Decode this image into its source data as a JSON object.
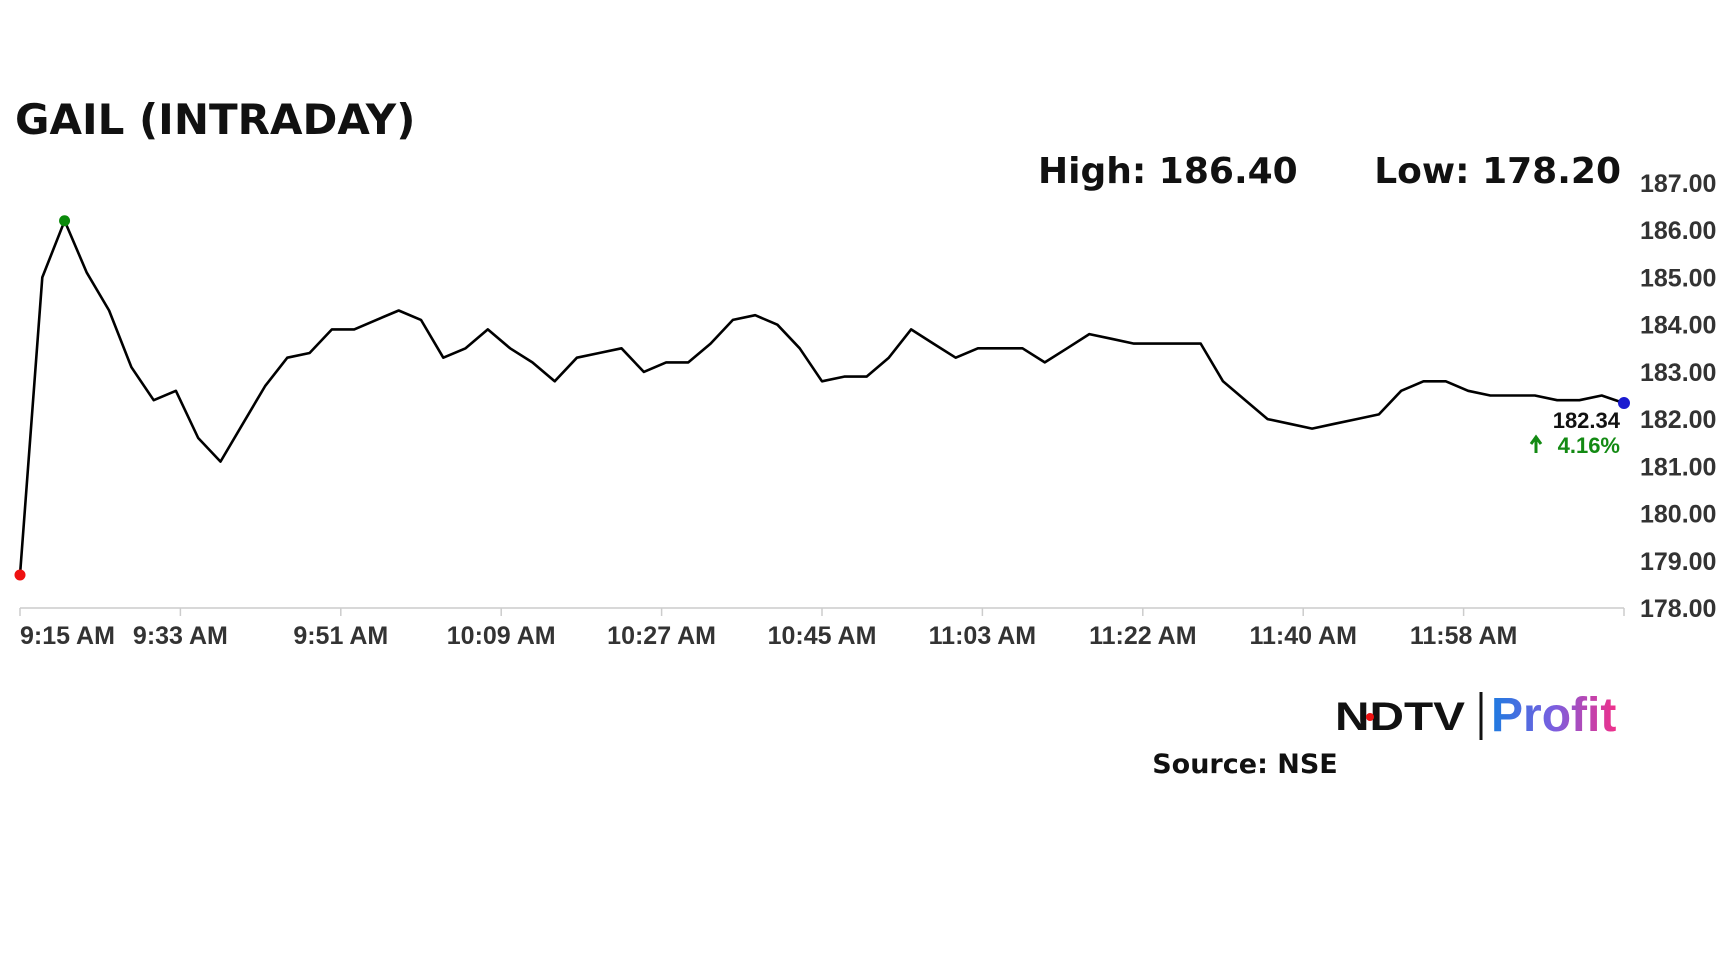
{
  "chart_data": {
    "type": "line",
    "title": "GAIL (INTRADAY)",
    "high_text": "High: 186.40",
    "low_text": "Low: 178.20",
    "source": "Source: NSE",
    "logo": {
      "left": "NDTV",
      "right": "Profit"
    },
    "change": "4.16%",
    "change_color": "#138a13",
    "color": "#000000",
    "high_marker_color": "#0a8a0a",
    "low_marker_color": "#ee1111",
    "last_marker_color": "#1a1ad0",
    "x_labels": [
      "9:15 AM",
      "9:33 AM",
      "9:51 AM",
      "10:09 AM",
      "10:27 AM",
      "10:45 AM",
      "11:03 AM",
      "11:22 AM",
      "11:40 AM",
      "11:58 AM",
      null
    ],
    "values": [
      178.7,
      185.0,
      186.2,
      185.1,
      184.3,
      183.1,
      182.4,
      182.6,
      181.6,
      181.1,
      181.9,
      182.7,
      183.3,
      183.4,
      183.9,
      183.9,
      184.1,
      184.3,
      184.1,
      183.3,
      183.5,
      183.9,
      183.5,
      183.2,
      182.8,
      183.3,
      183.4,
      183.5,
      183.0,
      183.2,
      183.2,
      183.6,
      184.1,
      184.2,
      184.0,
      183.5,
      182.8,
      182.9,
      182.9,
      183.3,
      183.9,
      183.6,
      183.3,
      183.5,
      183.5,
      183.5,
      183.2,
      183.5,
      183.8,
      183.7,
      183.6,
      183.6,
      183.6,
      183.6,
      182.8,
      182.4,
      182.0,
      181.9,
      181.8,
      181.9,
      182.0,
      182.1,
      182.6,
      182.8,
      182.8,
      182.6,
      182.5,
      182.5,
      182.5,
      182.4,
      182.4,
      182.5,
      182.34
    ],
    "value_labels": [
      null,
      null,
      null,
      null,
      null,
      null,
      null,
      null,
      null,
      null,
      null,
      null,
      null,
      null,
      null,
      null,
      null,
      null,
      null,
      null,
      null,
      null,
      null,
      null,
      null,
      null,
      null,
      null,
      null,
      null,
      null,
      null,
      null,
      null,
      null,
      null,
      null,
      null,
      null,
      null,
      null,
      null,
      null,
      null,
      null,
      null,
      null,
      null,
      null,
      null,
      null,
      null,
      null,
      null,
      null,
      null,
      null,
      null,
      null,
      null,
      null,
      null,
      null,
      null,
      null,
      null,
      null,
      null,
      null,
      null,
      null,
      null,
      "182.34"
    ],
    "ylim": [
      178,
      187
    ],
    "yticks": [
      {
        "value": 178,
        "label": "178.00"
      },
      {
        "value": 179,
        "label": "179.00"
      },
      {
        "value": 180,
        "label": "180.00"
      },
      {
        "value": 181,
        "label": "181.00"
      },
      {
        "value": 182,
        "label": "182.00"
      },
      {
        "value": 183,
        "label": "183.00"
      },
      {
        "value": 184,
        "label": "184.00"
      },
      {
        "value": 185,
        "label": "185.00"
      },
      {
        "value": 186,
        "label": "186.00"
      },
      {
        "value": 187,
        "label": "187.00"
      }
    ]
  }
}
